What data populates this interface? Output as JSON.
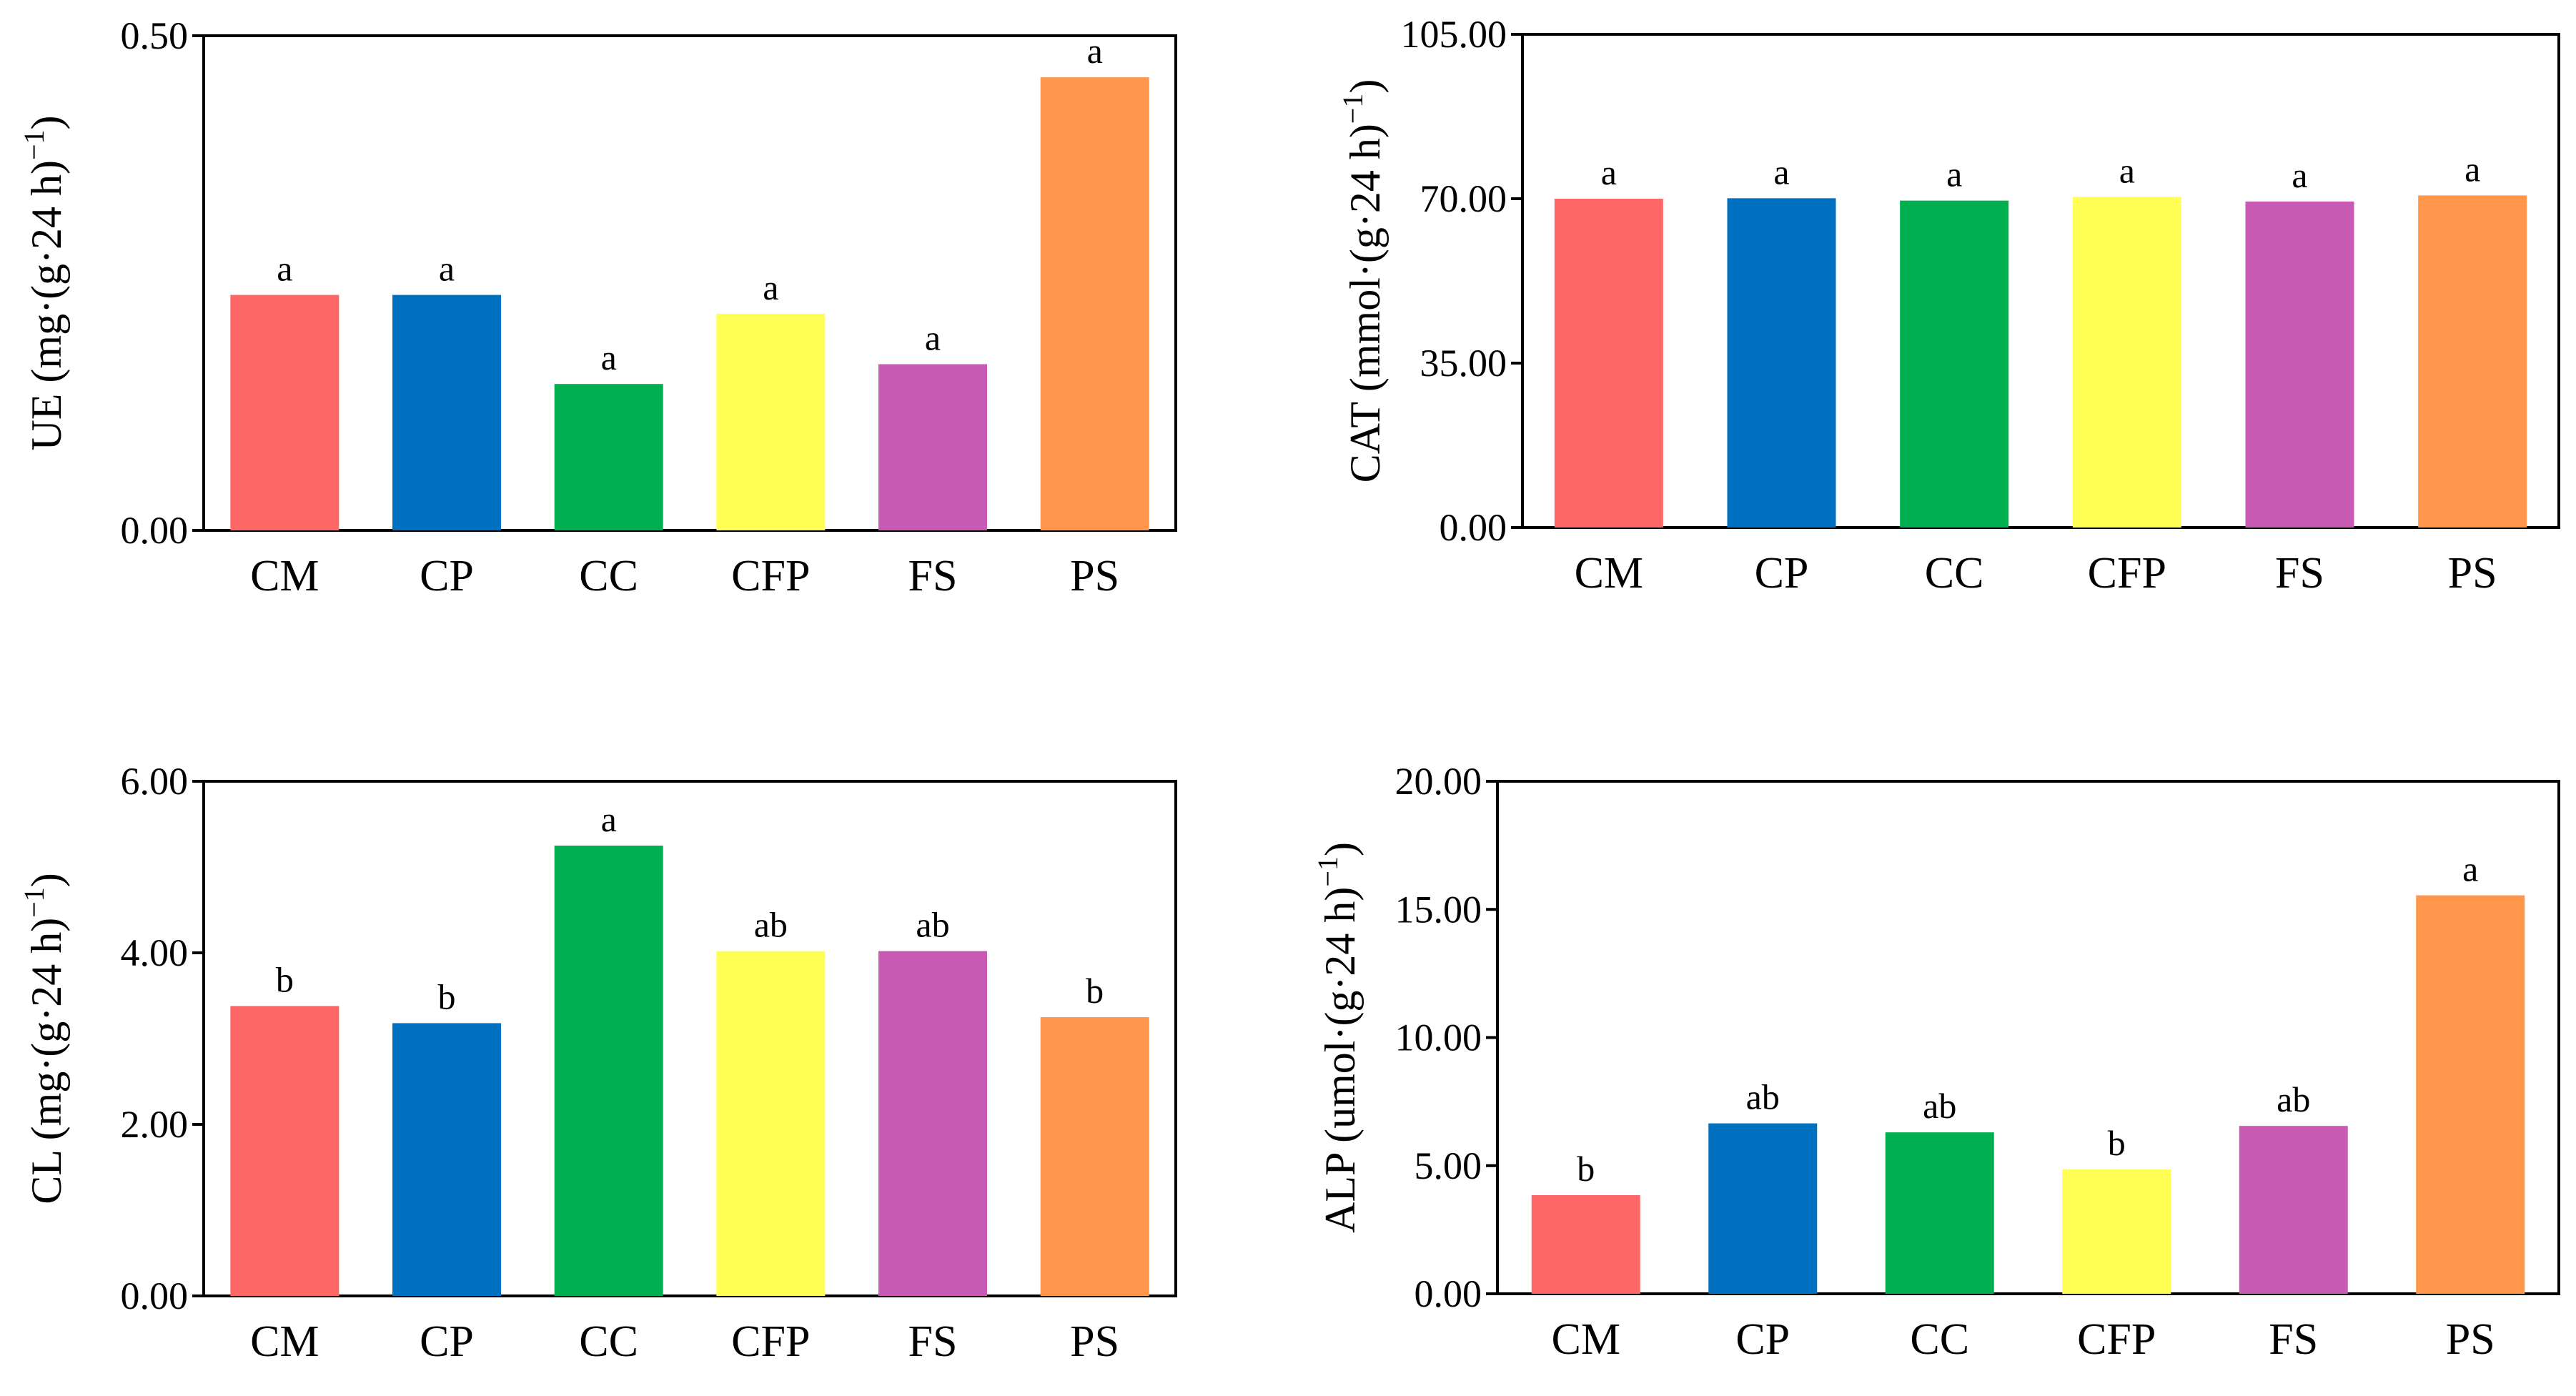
{
  "colors": {
    "CM": "#FF6666",
    "CP": "#0070C0",
    "CC": "#00B050",
    "CFP": "#FFFF55",
    "FS": "#C85AB4",
    "PS": "#FF964B"
  },
  "chart_data": [
    {
      "id": "ue",
      "type": "bar",
      "categories": [
        "CM",
        "CP",
        "CC",
        "CFP",
        "FS",
        "PS"
      ],
      "values": [
        0.238,
        0.238,
        0.148,
        0.219,
        0.168,
        0.458
      ],
      "significance": [
        "a",
        "a",
        "a",
        "a",
        "a",
        "a"
      ],
      "ylabel": {
        "main": "UE (mg·(g·24 h)",
        "sup": "−1",
        "tail": ")"
      },
      "ylim": [
        0,
        0.5
      ],
      "yticks": [
        0,
        0.5
      ],
      "ytick_labels": [
        "0.00",
        "0.50"
      ]
    },
    {
      "id": "cat",
      "type": "bar",
      "categories": [
        "CM",
        "CP",
        "CC",
        "CFP",
        "FS",
        "PS"
      ],
      "values": [
        70.0,
        70.1,
        69.6,
        70.4,
        69.4,
        70.7
      ],
      "significance": [
        "a",
        "a",
        "a",
        "a",
        "a",
        "a"
      ],
      "ylabel": {
        "main": "CAT (mmol·(g·24 h)",
        "sup": "−1",
        "tail": ")"
      },
      "ylim": [
        0,
        105
      ],
      "yticks": [
        0,
        35,
        70,
        105
      ],
      "ytick_labels": [
        "0.00",
        "35.00",
        "70.00",
        "105.00"
      ]
    },
    {
      "id": "cl",
      "type": "bar",
      "categories": [
        "CM",
        "CP",
        "CC",
        "CFP",
        "FS",
        "PS"
      ],
      "values": [
        3.38,
        3.18,
        5.25,
        4.02,
        4.02,
        3.25
      ],
      "significance": [
        "b",
        "b",
        "a",
        "ab",
        "ab",
        "b"
      ],
      "ylabel": {
        "main": "CL (mg·(g·24 h)",
        "sup": "−1",
        "tail": ")"
      },
      "ylim": [
        0,
        6
      ],
      "yticks": [
        0,
        2,
        4,
        6
      ],
      "ytick_labels": [
        "0.00",
        "2.00",
        "4.00",
        "6.00"
      ]
    },
    {
      "id": "alp",
      "type": "bar",
      "categories": [
        "CM",
        "CP",
        "CC",
        "CFP",
        "FS",
        "PS"
      ],
      "values": [
        3.85,
        6.65,
        6.3,
        4.85,
        6.55,
        15.55
      ],
      "significance": [
        "b",
        "ab",
        "ab",
        "b",
        "ab",
        "a"
      ],
      "ylabel": {
        "main": "ALP (umol·(g·24 h)",
        "sup": "−1",
        "tail": ")"
      },
      "ylim": [
        0,
        20
      ],
      "yticks": [
        0,
        5,
        10,
        15,
        20
      ],
      "ytick_labels": [
        "0.00",
        "5.00",
        "10.00",
        "15.00",
        "20.00"
      ]
    }
  ]
}
